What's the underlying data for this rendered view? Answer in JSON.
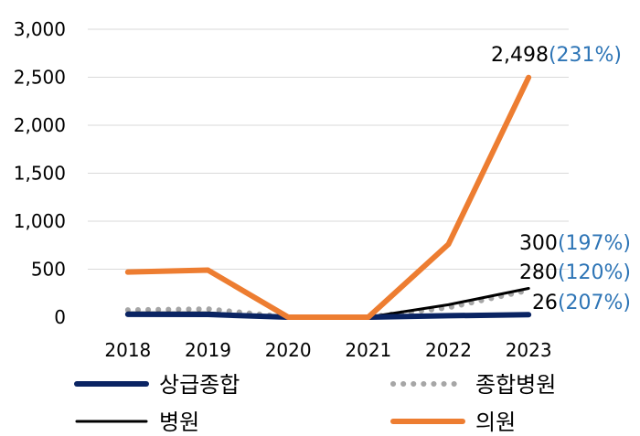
{
  "chart_data": {
    "type": "line",
    "title": "",
    "xlabel": "",
    "ylabel": "",
    "categories": [
      "2018",
      "2019",
      "2020",
      "2021",
      "2022",
      "2023"
    ],
    "ylim": [
      0,
      3000
    ],
    "yticks": [
      0,
      500,
      1000,
      1500,
      2000,
      2500,
      3000
    ],
    "ytick_labels": [
      "0",
      "500",
      "1,000",
      "1,500",
      "2,000",
      "2,500",
      "3,000"
    ],
    "grid": true,
    "legend_position": "bottom",
    "series": [
      {
        "name": "상급종합",
        "values": [
          30,
          28,
          0,
          0,
          15,
          26
        ],
        "color": "#0a2463",
        "style": "solid-thick"
      },
      {
        "name": "종합병원",
        "values": [
          75,
          85,
          0,
          0,
          100,
          280
        ],
        "color": "#a6a6a6",
        "style": "dotted"
      },
      {
        "name": "병원",
        "values": [
          45,
          45,
          0,
          0,
          130,
          300
        ],
        "color": "#000000",
        "style": "solid-thin"
      },
      {
        "name": "의원",
        "values": [
          470,
          490,
          0,
          0,
          760,
          2498
        ],
        "color": "#ed7d31",
        "style": "solid-thick"
      }
    ],
    "annotations": [
      {
        "series": "의원",
        "value_text": "2,498",
        "pct_text": "(231%)"
      },
      {
        "series": "병원",
        "value_text": "300",
        "pct_text": "(197%)"
      },
      {
        "series": "종합병원",
        "value_text": "280",
        "pct_text": "(120%)"
      },
      {
        "series": "상급종합",
        "value_text": "26",
        "pct_text": "(207%)"
      }
    ],
    "pct_color": "#2e75b6"
  }
}
